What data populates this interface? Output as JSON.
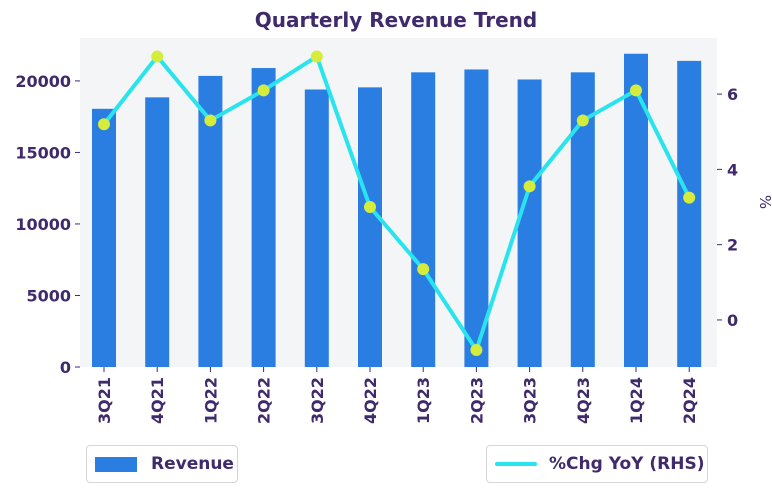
{
  "chart_data": {
    "type": "bar",
    "title": "Quarterly Revenue Trend",
    "categories": [
      "3Q21",
      "4Q21",
      "1Q22",
      "2Q22",
      "3Q22",
      "4Q22",
      "1Q23",
      "2Q23",
      "3Q23",
      "4Q23",
      "1Q24",
      "2Q24"
    ],
    "series": [
      {
        "name": "Revenue",
        "type": "bar",
        "axis": "left",
        "color": "#2a7de1",
        "values": [
          18050,
          18850,
          20350,
          20900,
          19400,
          19550,
          20600,
          20800,
          20100,
          20600,
          21900,
          21400
        ]
      },
      {
        "name": "%Chg YoY (RHS)",
        "type": "line",
        "axis": "right",
        "color": "#29e4ee",
        "marker_color": "#d6ec3c",
        "values": [
          5.2,
          7.0,
          5.3,
          6.1,
          7.0,
          3.0,
          1.35,
          -0.8,
          3.55,
          5.3,
          6.1,
          3.25
        ]
      }
    ],
    "y_left": {
      "ticks": [
        0,
        5000,
        10000,
        15000,
        20000
      ],
      "range": [
        0,
        23000
      ],
      "label": ""
    },
    "y_right": {
      "ticks": [
        0,
        2,
        4,
        6
      ],
      "range": [
        -1.25,
        7.49
      ],
      "label": "%"
    },
    "grid": false,
    "legend_placement": "bottom"
  },
  "legend": {
    "revenue_label": "Revenue",
    "yoy_label": "%Chg YoY (RHS)"
  }
}
